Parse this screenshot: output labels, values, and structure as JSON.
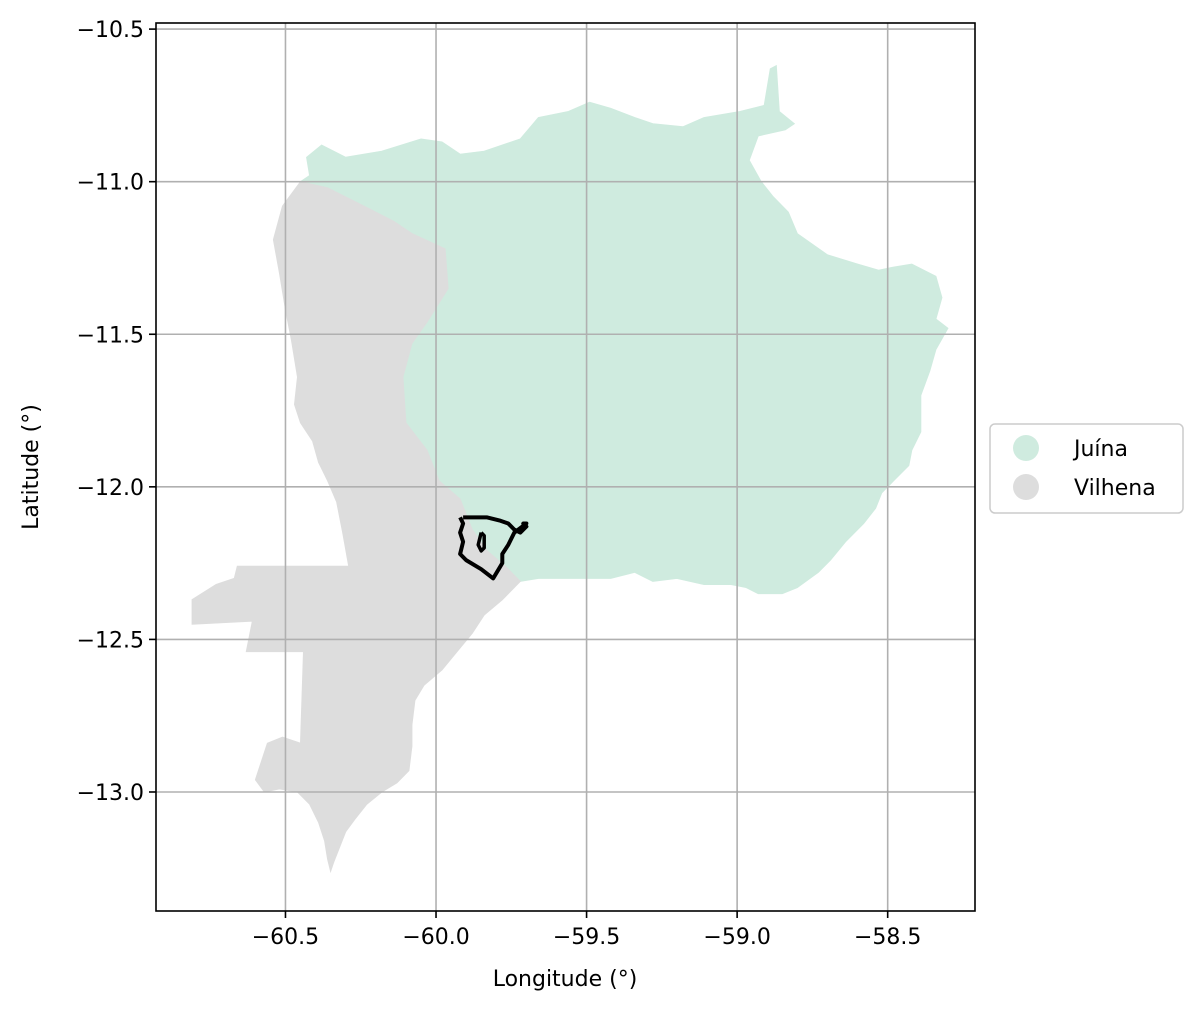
{
  "chart_data": {
    "type": "map",
    "xlabel": "Longitude (°)",
    "ylabel": "Latitude (°)",
    "xlim": [
      -60.93,
      -58.21
    ],
    "ylim": [
      -13.39,
      -10.48
    ],
    "xticks": [
      -60.5,
      -60.0,
      -59.5,
      -59.0,
      -58.5
    ],
    "xtick_labels": [
      "−60.5",
      "−60.0",
      "−59.5",
      "−59.0",
      "−58.5"
    ],
    "yticks": [
      -10.5,
      -11.0,
      -11.5,
      -12.0,
      -12.5,
      -13.0
    ],
    "ytick_labels": [
      "−10.5",
      "−11.0",
      "−11.5",
      "−12.0",
      "−12.5",
      "−13.0"
    ],
    "grid": true,
    "legend_position": "center-right outside",
    "regions": [
      {
        "name": "Juína",
        "color": "#cfebdf",
        "polygon": [
          [
            -60.45,
            -11.0
          ],
          [
            -60.42,
            -10.98
          ],
          [
            -60.43,
            -10.92
          ],
          [
            -60.38,
            -10.88
          ],
          [
            -60.3,
            -10.92
          ],
          [
            -60.18,
            -10.9
          ],
          [
            -60.05,
            -10.86
          ],
          [
            -59.98,
            -10.87
          ],
          [
            -59.92,
            -10.91
          ],
          [
            -59.84,
            -10.9
          ],
          [
            -59.72,
            -10.86
          ],
          [
            -59.66,
            -10.79
          ],
          [
            -59.56,
            -10.77
          ],
          [
            -59.49,
            -10.74
          ],
          [
            -59.42,
            -10.76
          ],
          [
            -59.34,
            -10.79
          ],
          [
            -59.28,
            -10.81
          ],
          [
            -59.18,
            -10.82
          ],
          [
            -59.11,
            -10.79
          ],
          [
            -58.99,
            -10.77
          ],
          [
            -58.91,
            -10.75
          ],
          [
            -58.89,
            -10.63
          ],
          [
            -58.87,
            -10.62
          ],
          [
            -58.86,
            -10.77
          ],
          [
            -58.81,
            -10.81
          ],
          [
            -58.84,
            -10.83
          ],
          [
            -58.93,
            -10.85
          ],
          [
            -58.96,
            -10.93
          ],
          [
            -58.92,
            -11.0
          ],
          [
            -58.88,
            -11.05
          ],
          [
            -58.83,
            -11.1
          ],
          [
            -58.8,
            -11.17
          ],
          [
            -58.7,
            -11.24
          ],
          [
            -58.6,
            -11.27
          ],
          [
            -58.53,
            -11.29
          ],
          [
            -58.48,
            -11.28
          ],
          [
            -58.42,
            -11.27
          ],
          [
            -58.34,
            -11.31
          ],
          [
            -58.32,
            -11.38
          ],
          [
            -58.34,
            -11.45
          ],
          [
            -58.3,
            -11.48
          ],
          [
            -58.34,
            -11.55
          ],
          [
            -58.36,
            -11.62
          ],
          [
            -58.39,
            -11.7
          ],
          [
            -58.39,
            -11.82
          ],
          [
            -58.42,
            -11.88
          ],
          [
            -58.43,
            -11.93
          ],
          [
            -58.48,
            -11.98
          ],
          [
            -58.52,
            -12.02
          ],
          [
            -58.54,
            -12.07
          ],
          [
            -58.58,
            -12.12
          ],
          [
            -58.64,
            -12.18
          ],
          [
            -58.69,
            -12.24
          ],
          [
            -58.73,
            -12.28
          ],
          [
            -58.8,
            -12.33
          ],
          [
            -58.85,
            -12.35
          ],
          [
            -58.93,
            -12.35
          ],
          [
            -58.97,
            -12.33
          ],
          [
            -59.02,
            -12.32
          ],
          [
            -59.11,
            -12.32
          ],
          [
            -59.2,
            -12.3
          ],
          [
            -59.28,
            -12.31
          ],
          [
            -59.34,
            -12.28
          ],
          [
            -59.42,
            -12.3
          ],
          [
            -59.51,
            -12.3
          ],
          [
            -59.58,
            -12.3
          ],
          [
            -59.66,
            -12.3
          ],
          [
            -59.72,
            -12.31
          ],
          [
            -59.77,
            -12.26
          ],
          [
            -59.83,
            -12.21
          ],
          [
            -59.88,
            -12.14
          ],
          [
            -59.92,
            -12.04
          ],
          [
            -59.99,
            -11.98
          ],
          [
            -60.03,
            -11.88
          ],
          [
            -60.1,
            -11.79
          ],
          [
            -60.11,
            -11.64
          ],
          [
            -60.08,
            -11.53
          ],
          [
            -60.03,
            -11.46
          ],
          [
            -59.96,
            -11.35
          ],
          [
            -59.97,
            -11.22
          ],
          [
            -60.08,
            -11.17
          ],
          [
            -60.14,
            -11.13
          ],
          [
            -60.22,
            -11.09
          ],
          [
            -60.3,
            -11.05
          ],
          [
            -60.36,
            -11.02
          ]
        ]
      },
      {
        "name": "Vilhena",
        "color": "#dddddd",
        "polygon": [
          [
            -60.45,
            -11.0
          ],
          [
            -60.36,
            -11.02
          ],
          [
            -60.3,
            -11.05
          ],
          [
            -60.22,
            -11.09
          ],
          [
            -60.14,
            -11.13
          ],
          [
            -60.08,
            -11.17
          ],
          [
            -59.97,
            -11.22
          ],
          [
            -59.96,
            -11.35
          ],
          [
            -60.03,
            -11.46
          ],
          [
            -60.08,
            -11.53
          ],
          [
            -60.11,
            -11.64
          ],
          [
            -60.1,
            -11.79
          ],
          [
            -60.03,
            -11.88
          ],
          [
            -59.99,
            -11.98
          ],
          [
            -59.92,
            -12.04
          ],
          [
            -59.88,
            -12.14
          ],
          [
            -59.83,
            -12.21
          ],
          [
            -59.77,
            -12.26
          ],
          [
            -59.72,
            -12.31
          ],
          [
            -59.78,
            -12.37
          ],
          [
            -59.84,
            -12.42
          ],
          [
            -59.88,
            -12.48
          ],
          [
            -59.93,
            -12.54
          ],
          [
            -59.98,
            -12.6
          ],
          [
            -60.04,
            -12.65
          ],
          [
            -60.07,
            -12.7
          ],
          [
            -60.08,
            -12.78
          ],
          [
            -60.08,
            -12.85
          ],
          [
            -60.09,
            -12.93
          ],
          [
            -60.13,
            -12.97
          ],
          [
            -60.18,
            -13.0
          ],
          [
            -60.23,
            -13.04
          ],
          [
            -60.27,
            -13.09
          ],
          [
            -60.3,
            -13.13
          ],
          [
            -60.32,
            -13.18
          ],
          [
            -60.34,
            -13.23
          ],
          [
            -60.35,
            -13.26
          ],
          [
            -60.36,
            -13.22
          ],
          [
            -60.37,
            -13.16
          ],
          [
            -60.39,
            -13.1
          ],
          [
            -60.42,
            -13.04
          ],
          [
            -60.46,
            -13.0
          ],
          [
            -60.52,
            -12.99
          ],
          [
            -60.57,
            -13.0
          ],
          [
            -60.6,
            -12.96
          ],
          [
            -60.58,
            -12.9
          ],
          [
            -60.56,
            -12.84
          ],
          [
            -60.51,
            -12.82
          ],
          [
            -60.45,
            -12.84
          ],
          [
            -60.44,
            -12.54
          ],
          [
            -60.63,
            -12.54
          ],
          [
            -60.61,
            -12.44
          ],
          [
            -60.81,
            -12.45
          ],
          [
            -60.81,
            -12.37
          ],
          [
            -60.73,
            -12.32
          ],
          [
            -60.67,
            -12.3
          ],
          [
            -60.66,
            -12.26
          ],
          [
            -60.29,
            -12.26
          ],
          [
            -60.31,
            -12.15
          ],
          [
            -60.33,
            -12.05
          ],
          [
            -60.36,
            -11.98
          ],
          [
            -60.39,
            -11.92
          ],
          [
            -60.41,
            -11.85
          ],
          [
            -60.45,
            -11.79
          ],
          [
            -60.47,
            -11.73
          ],
          [
            -60.46,
            -11.64
          ],
          [
            -60.48,
            -11.52
          ],
          [
            -60.5,
            -11.42
          ],
          [
            -60.52,
            -11.3
          ],
          [
            -60.54,
            -11.19
          ],
          [
            -60.51,
            -11.08
          ]
        ]
      }
    ],
    "outline": {
      "color": "#000000",
      "outer": [
        [
          -59.91,
          -12.1
        ],
        [
          -59.87,
          -12.1
        ],
        [
          -59.83,
          -12.1
        ],
        [
          -59.79,
          -12.11
        ],
        [
          -59.76,
          -12.12
        ],
        [
          -59.74,
          -12.14
        ],
        [
          -59.72,
          -12.15
        ],
        [
          -59.7,
          -12.13
        ],
        [
          -59.71,
          -12.12
        ],
        [
          -59.7,
          -12.12
        ],
        [
          -59.74,
          -12.15
        ],
        [
          -59.76,
          -12.19
        ],
        [
          -59.78,
          -12.22
        ],
        [
          -59.78,
          -12.25
        ],
        [
          -59.81,
          -12.3
        ],
        [
          -59.85,
          -12.27
        ],
        [
          -59.9,
          -12.24
        ],
        [
          -59.92,
          -12.22
        ],
        [
          -59.91,
          -12.18
        ],
        [
          -59.92,
          -12.15
        ],
        [
          -59.91,
          -12.12
        ],
        [
          -59.92,
          -12.1
        ]
      ],
      "inner": [
        [
          -59.85,
          -12.15
        ],
        [
          -59.84,
          -12.16
        ],
        [
          -59.84,
          -12.2
        ],
        [
          -59.85,
          -12.21
        ],
        [
          -59.86,
          -12.19
        ],
        [
          -59.85,
          -12.15
        ]
      ]
    },
    "legend": [
      {
        "label": "Juína",
        "color": "#cfebdf"
      },
      {
        "label": "Vilhena",
        "color": "#dddddd"
      }
    ]
  }
}
